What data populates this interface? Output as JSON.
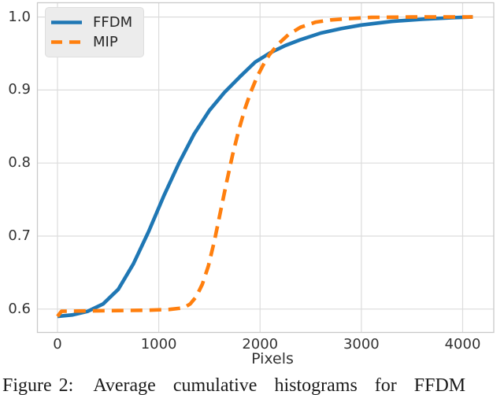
{
  "caption": {
    "label": "Figure 2:",
    "text": "Average cumulative histograms for FFDM"
  },
  "colors": {
    "grid": "#dcdcdc",
    "spine": "#c9c9c9",
    "tick_text": "#333333",
    "legend_background": "#ececec",
    "ffdm_blue": "#1f77b4",
    "mip_orange": "#ff7f0e"
  },
  "chart_data": {
    "type": "line",
    "title": "",
    "xlabel": "Pixels",
    "ylabel": "",
    "grid": true,
    "legend_position": "upper-left",
    "xlim": [
      -198,
      4307
    ],
    "ylim": [
      0.568,
      1.0195
    ],
    "xticks": [
      0,
      1000,
      2000,
      3000,
      4000
    ],
    "xtick_labels": [
      "0",
      "1000",
      "2000",
      "3000",
      "4000"
    ],
    "yticks": [
      0.6,
      0.7,
      0.8,
      0.9,
      1.0
    ],
    "ytick_labels": [
      "0.6",
      "0.7",
      "0.8",
      "0.9",
      "1.0"
    ],
    "series": [
      {
        "name": "FFDM",
        "color": "#1f77b4",
        "style": "solid",
        "x": [
          0,
          150,
          300,
          450,
          600,
          750,
          900,
          1050,
          1200,
          1350,
          1500,
          1650,
          1800,
          1950,
          2100,
          2250,
          2400,
          2600,
          2800,
          3000,
          3300,
          3600,
          3900,
          4100
        ],
        "y": [
          0.59,
          0.592,
          0.597,
          0.607,
          0.627,
          0.662,
          0.706,
          0.755,
          0.8,
          0.84,
          0.872,
          0.897,
          0.918,
          0.938,
          0.951,
          0.961,
          0.969,
          0.978,
          0.984,
          0.989,
          0.994,
          0.997,
          0.999,
          1.0
        ]
      },
      {
        "name": "MIP",
        "color": "#ff7f0e",
        "style": "dashed",
        "x": [
          0,
          40,
          300,
          600,
          900,
          1100,
          1200,
          1250,
          1310,
          1370,
          1430,
          1490,
          1550,
          1610,
          1670,
          1730,
          1790,
          1850,
          1910,
          1970,
          2030,
          2090,
          2180,
          2280,
          2400,
          2550,
          2700,
          2900,
          3100,
          3500,
          4100
        ],
        "y": [
          0.59,
          0.597,
          0.5975,
          0.598,
          0.5985,
          0.5995,
          0.601,
          0.602,
          0.607,
          0.617,
          0.634,
          0.659,
          0.694,
          0.734,
          0.774,
          0.812,
          0.845,
          0.874,
          0.898,
          0.918,
          0.934,
          0.948,
          0.963,
          0.976,
          0.986,
          0.993,
          0.996,
          0.998,
          0.9995,
          1.0,
          1.0
        ]
      }
    ]
  }
}
